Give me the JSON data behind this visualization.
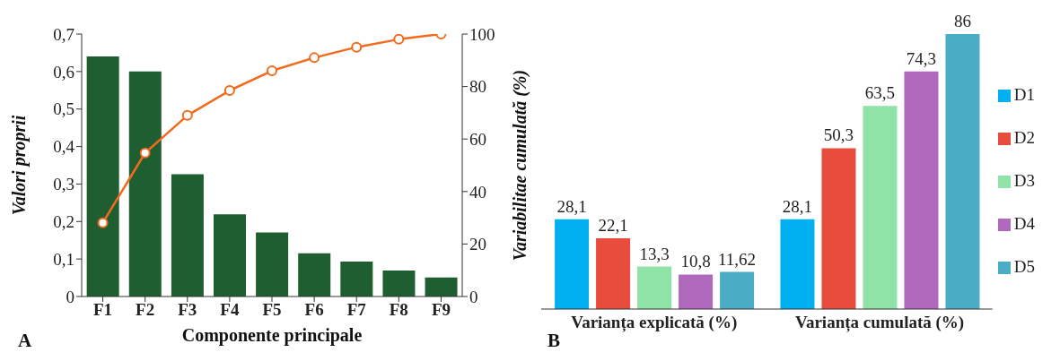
{
  "chart_data": [
    {
      "type": "bar",
      "xlabel": "Componente principale",
      "ylabel": "Valori proprii",
      "y2label": "Variabilitae cumulată  (%)",
      "categories": [
        "F1",
        "F2",
        "F3",
        "F4",
        "F5",
        "F6",
        "F7",
        "F8",
        "F9"
      ],
      "series": [
        {
          "color": "#1e5e30",
          "values": [
            0.64,
            0.6,
            0.326,
            0.219,
            0.171,
            0.115,
            0.093,
            0.069,
            0.051
          ]
        },
        {
          "type": "line",
          "axis": "y2",
          "color": "#f26b1d",
          "values": [
            28.1,
            54.7,
            69,
            78.5,
            86,
            91,
            95,
            98,
            100
          ]
        }
      ],
      "ylim": [
        0,
        0.7
      ],
      "yticks": [
        0,
        {
          "value": 0.1,
          "label": "0,1"
        },
        {
          "value": 0.2,
          "label": "0,2"
        },
        {
          "value": 0.3,
          "label": "0,3"
        },
        {
          "value": 0.4,
          "label": "0,4"
        },
        {
          "value": 0.5,
          "label": "0,5"
        },
        {
          "value": 0.6,
          "label": "0,6"
        },
        {
          "value": 0.7,
          "label": "0,7"
        }
      ],
      "y2lim": [
        0,
        100
      ],
      "y2ticks": [
        0,
        20,
        40,
        60,
        80,
        100
      ],
      "marker": "circle",
      "annotations": [
        "A"
      ]
    },
    {
      "type": "bar",
      "categories": [
        "Varianța explicată (%)",
        "Varianța cumulată (%)"
      ],
      "legend": "right",
      "annotations": [
        "B"
      ],
      "series": [
        {
          "name": "D1",
          "color": "#00b0f0",
          "values": [
            28.1,
            28.1
          ],
          "value_labels": [
            "28,1",
            "28,1"
          ]
        },
        {
          "name": "D2",
          "color": "#e84c3d",
          "values": [
            22.1,
            50.3
          ],
          "value_labels": [
            "22,1",
            "50,3"
          ]
        },
        {
          "name": "D3",
          "color": "#8fe3a6",
          "values": [
            13.3,
            63.5
          ],
          "value_labels": [
            "13,3",
            "63,5"
          ]
        },
        {
          "name": "D4",
          "color": "#b068bc",
          "values": [
            10.8,
            74.3
          ],
          "value_labels": [
            "10,8",
            "74,3"
          ]
        },
        {
          "name": "D5",
          "color": "#4bacc6",
          "values": [
            11.62,
            86
          ],
          "value_labels": [
            "11,62",
            "86"
          ]
        }
      ]
    }
  ]
}
